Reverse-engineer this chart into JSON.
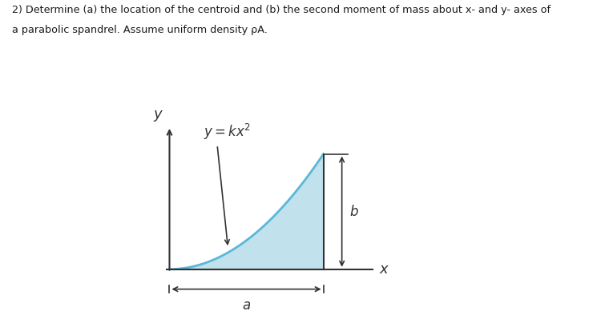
{
  "title_line1": "2) Determine (a) the location of the centroid and (b) the second moment of mass about x- and y- axes of",
  "title_line2": "a parabolic spandrel. Assume uniform density ρ",
  "title_sub": "A",
  "title_suffix": ".",
  "equation": "$y = kx^2$",
  "label_a": "$a$",
  "label_b": "$b$",
  "label_x": "$x$",
  "label_y": "$y$",
  "fill_color": "#add8e6",
  "fill_alpha": 0.75,
  "curve_color": "#5ab8d8",
  "axis_color": "#333333",
  "background_color": "#ffffff",
  "fig_width": 7.5,
  "fig_height": 4.09,
  "dpi": 100,
  "a_val": 1.0,
  "b_val": 0.75
}
